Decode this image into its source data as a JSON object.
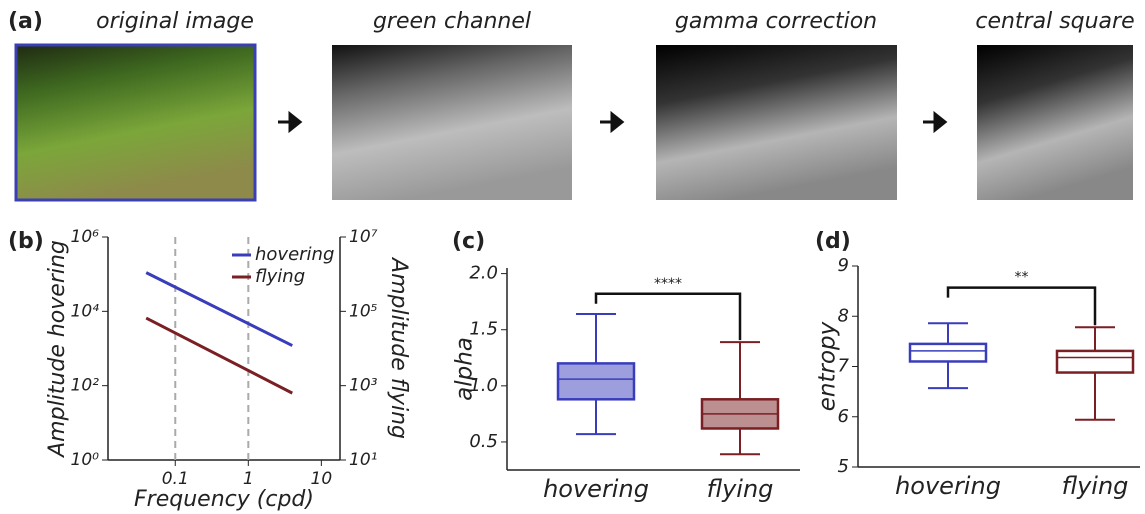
{
  "panel_a": {
    "label": "(a)",
    "steps": [
      "original image",
      "green channel",
      "gamma correction",
      "central square"
    ]
  },
  "chart_data": [
    {
      "type": "line",
      "label": "(b)",
      "xlabel": "Frequency (cpd)",
      "ylabel": "Amplitude hovering",
      "y2label": "Amplitude flying",
      "log_x": true,
      "log_y": true,
      "xlim": [
        0.012,
        18
      ],
      "xticks": [
        0.1,
        1,
        10
      ],
      "ylim": [
        1,
        1000000
      ],
      "yticks": [
        {
          "value": 1,
          "label": "10⁰"
        },
        {
          "value": 100,
          "label": "10²"
        },
        {
          "value": 10000,
          "label": "10⁴"
        },
        {
          "value": 1000000,
          "label": "10⁶"
        }
      ],
      "y2lim": [
        10,
        10000000
      ],
      "y2ticks": [
        {
          "value": 10,
          "label": "10¹"
        },
        {
          "value": 1000,
          "label": "10³"
        },
        {
          "value": 100000,
          "label": "10⁵"
        },
        {
          "value": 10000000,
          "label": "10⁷"
        }
      ],
      "reference_lines_x": [
        0.1,
        1
      ],
      "legend": "upper right",
      "series": [
        {
          "name": "hovering",
          "color": "#3a3dbb",
          "x": [
            0.04,
            4
          ],
          "values": [
            110000,
            1200
          ]
        },
        {
          "name": "flying",
          "color": "#7a1f24",
          "axis": "y2",
          "x": [
            0.04,
            4
          ],
          "values": [
            66000,
            630
          ]
        }
      ]
    },
    {
      "type": "box",
      "label": "(c)",
      "ylabel": "alpha",
      "categories": [
        "hovering",
        "flying"
      ],
      "ylim": [
        0.25,
        2.05
      ],
      "yticks": [
        0.5,
        {
          "value": 1,
          "label": "1.0"
        },
        1.5,
        {
          "value": 2,
          "label": "2.0"
        }
      ],
      "boxes": [
        {
          "min": 0.57,
          "q1": 0.88,
          "median": 1.06,
          "q3": 1.2,
          "max": 1.64,
          "color": "#3a3dbb"
        },
        {
          "min": 0.39,
          "q1": 0.62,
          "median": 0.75,
          "q3": 0.88,
          "max": 1.39,
          "color": "#7a1f24"
        }
      ],
      "significance": {
        "label": "****",
        "y": 1.82
      }
    },
    {
      "type": "box",
      "label": "(d)",
      "ylabel": "entropy",
      "categories": [
        "hovering",
        "flying"
      ],
      "ylim": [
        5,
        9
      ],
      "yticks": [
        5,
        6,
        7,
        8,
        9
      ],
      "boxes": [
        {
          "min": 6.57,
          "q1": 7.1,
          "median": 7.31,
          "q3": 7.45,
          "max": 7.86,
          "color": "#3a3dbb"
        },
        {
          "min": 5.94,
          "q1": 6.88,
          "median": 7.18,
          "q3": 7.31,
          "max": 7.78,
          "color": "#7a1f24"
        }
      ],
      "significance": {
        "label": "**",
        "y": 8.57
      }
    }
  ]
}
